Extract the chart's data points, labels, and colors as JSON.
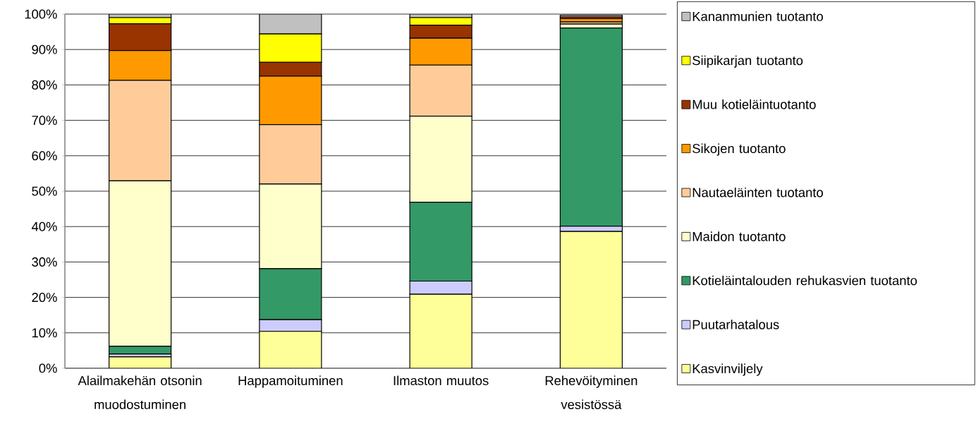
{
  "chart_data": {
    "type": "bar",
    "stacked": true,
    "categories": [
      "Alailmakehän otsonin muodostuminen",
      "Happamoituminen",
      "Ilmaston muutos",
      "Rehevöityminen vesistössä"
    ],
    "series": [
      {
        "name": "Kasvinviljely",
        "color": "#ffff99",
        "values": [
          3.2,
          10.4,
          20.9,
          38.6
        ]
      },
      {
        "name": "Puutarhatalous",
        "color": "#ccccff",
        "values": [
          0.8,
          3.3,
          3.7,
          1.5
        ]
      },
      {
        "name": "Kotieläintalouden rehukasvien tuotanto",
        "color": "#339966",
        "values": [
          2.2,
          14.4,
          22.3,
          56.0
        ]
      },
      {
        "name": "Maidon tuotanto",
        "color": "#ffffcc",
        "values": [
          46.7,
          23.9,
          24.3,
          1.1
        ]
      },
      {
        "name": "Nautaeläinten tuotanto",
        "color": "#ffcc99",
        "values": [
          28.4,
          16.8,
          14.4,
          0.6
        ]
      },
      {
        "name": "Sikojen tuotanto",
        "color": "#ff9900",
        "values": [
          8.4,
          13.7,
          7.6,
          0.9
        ]
      },
      {
        "name": "Muu kotieläintuotanto",
        "color": "#993300",
        "values": [
          7.6,
          3.9,
          3.7,
          0.5
        ]
      },
      {
        "name": "Siipikarjan tuotanto",
        "color": "#ffff00",
        "values": [
          1.7,
          8.0,
          2.1,
          null
        ]
      },
      {
        "name": "Kananmunien tuotanto",
        "color": "#c0c0c0",
        "values": [
          1.0,
          5.6,
          1.0,
          0.5
        ]
      }
    ],
    "ylim": [
      0,
      100
    ],
    "yticks": [
      {
        "value": 0,
        "label": "0%"
      },
      {
        "value": 10,
        "label": "10%"
      },
      {
        "value": 20,
        "label": "20%"
      },
      {
        "value": 30,
        "label": "30%"
      },
      {
        "value": 40,
        "label": "40%"
      },
      {
        "value": 50,
        "label": "50%"
      },
      {
        "value": 60,
        "label": "60%"
      },
      {
        "value": 70,
        "label": "70%"
      },
      {
        "value": 80,
        "label": "80%"
      },
      {
        "value": 90,
        "label": "90%"
      },
      {
        "value": 100,
        "label": "100%"
      }
    ],
    "grid": "y",
    "legend": "right"
  }
}
